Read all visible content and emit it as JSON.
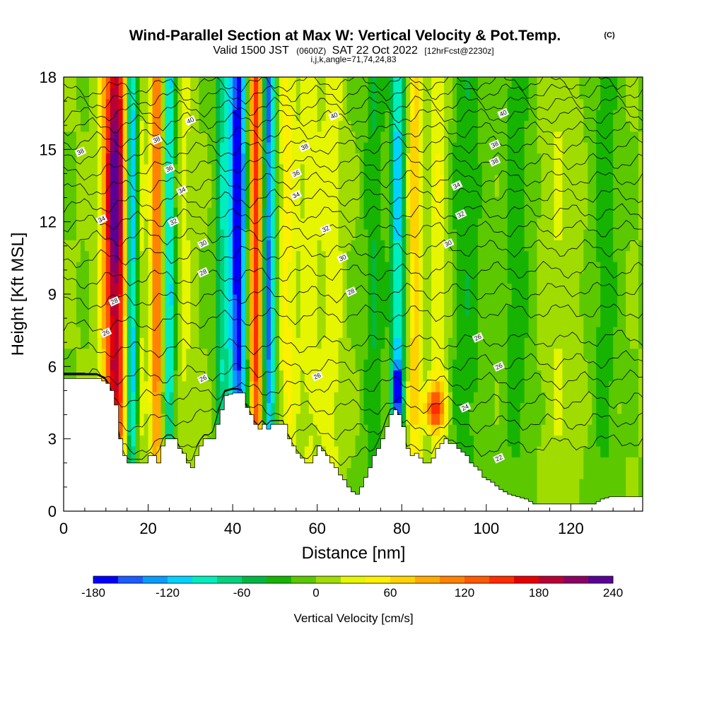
{
  "chart_data": {
    "type": "heatmap",
    "title": "Wind-Parallel Section at Max W: Vertical Velocity & Pot.Temp.",
    "title_mark": "(C)",
    "subtitle": {
      "valid": "Valid 1500 JST",
      "utc": "(0600Z)",
      "date": "SAT 22 Oct 2022",
      "forecast": "[12hrFcst@2230z]"
    },
    "indices": "i,j,k,angle=71,74,24,83",
    "xlabel": "Distance [nm]",
    "ylabel": "Height [Kft MSL]",
    "xlim": [
      0,
      137
    ],
    "ylim": [
      0,
      18
    ],
    "x_ticks": [
      0,
      20,
      40,
      60,
      80,
      100,
      120
    ],
    "y_ticks": [
      0,
      3,
      6,
      9,
      12,
      15,
      18
    ],
    "colorbar": {
      "label": "Vertical Velocity [cm/s]",
      "min": -180,
      "max": 240,
      "step": 20,
      "tick_labels": [
        -180,
        -120,
        -60,
        0,
        60,
        120,
        180,
        240
      ],
      "colors": [
        "#0000ff",
        "#1a5cff",
        "#0a9bff",
        "#00d2ff",
        "#00eebe",
        "#00d27d",
        "#00b841",
        "#16b400",
        "#5cc800",
        "#a0dc00",
        "#e6f500",
        "#fff000",
        "#ffd200",
        "#ffaa00",
        "#ff8200",
        "#ff5a00",
        "#ff2d00",
        "#e60000",
        "#b90035",
        "#8c0064",
        "#5a0096"
      ]
    },
    "terrain": [
      [
        0,
        5.5
      ],
      [
        2,
        5.5
      ],
      [
        4,
        5.5
      ],
      [
        6,
        5.5
      ],
      [
        8,
        5.5
      ],
      [
        10,
        5.3
      ],
      [
        11,
        5.0
      ],
      [
        12,
        4.4
      ],
      [
        13,
        3.0
      ],
      [
        14,
        2.3
      ],
      [
        15,
        2.0
      ],
      [
        17,
        2.0
      ],
      [
        19,
        2.0
      ],
      [
        20,
        2.3
      ],
      [
        21,
        2.3
      ],
      [
        22,
        2.0
      ],
      [
        23,
        2.7
      ],
      [
        24,
        3.0
      ],
      [
        26,
        3.0
      ],
      [
        27,
        2.6
      ],
      [
        28,
        2.4
      ],
      [
        29,
        2.0
      ],
      [
        30,
        1.8
      ],
      [
        31,
        2.3
      ],
      [
        32,
        2.7
      ],
      [
        33,
        3.0
      ],
      [
        35,
        3.0
      ],
      [
        36,
        3.6
      ],
      [
        37,
        4.2
      ],
      [
        38,
        4.8
      ],
      [
        40,
        4.9
      ],
      [
        42,
        4.9
      ],
      [
        43,
        4.3
      ],
      [
        44,
        4.0
      ],
      [
        45,
        3.6
      ],
      [
        46,
        3.4
      ],
      [
        47,
        3.6
      ],
      [
        48,
        3.4
      ],
      [
        49,
        3.6
      ],
      [
        50,
        3.6
      ],
      [
        52,
        3.6
      ],
      [
        53,
        3.0
      ],
      [
        54,
        2.7
      ],
      [
        55,
        2.4
      ],
      [
        56,
        2.2
      ],
      [
        57,
        2.0
      ],
      [
        58,
        2.0
      ],
      [
        59,
        2.3
      ],
      [
        60,
        2.7
      ],
      [
        61,
        2.5
      ],
      [
        62,
        2.3
      ],
      [
        63,
        2.0
      ],
      [
        64,
        1.8
      ],
      [
        65,
        1.5
      ],
      [
        66,
        1.3
      ],
      [
        67,
        1.0
      ],
      [
        68,
        0.8
      ],
      [
        69,
        0.7
      ],
      [
        70,
        1.0
      ],
      [
        71,
        1.4
      ],
      [
        72,
        1.8
      ],
      [
        73,
        2.3
      ],
      [
        74,
        2.6
      ],
      [
        75,
        3.0
      ],
      [
        76,
        3.5
      ],
      [
        77,
        4.0
      ],
      [
        78,
        4.2
      ],
      [
        79,
        4.0
      ],
      [
        80,
        3.5
      ],
      [
        81,
        2.6
      ],
      [
        82,
        2.3
      ],
      [
        83,
        2.4
      ],
      [
        84,
        2.2
      ],
      [
        85,
        2.0
      ],
      [
        86,
        2.0
      ],
      [
        87,
        2.2
      ],
      [
        88,
        2.6
      ],
      [
        89,
        2.8
      ],
      [
        90,
        3.0
      ],
      [
        91,
        2.8
      ],
      [
        92,
        2.8
      ],
      [
        93,
        2.6
      ],
      [
        95,
        2.3
      ],
      [
        96,
        2.0
      ],
      [
        98,
        1.7
      ],
      [
        99,
        1.4
      ],
      [
        101,
        1.2
      ],
      [
        103,
        0.9
      ],
      [
        105,
        0.7
      ],
      [
        107,
        0.6
      ],
      [
        109,
        0.5
      ],
      [
        111,
        0.3
      ],
      [
        113,
        0.3
      ],
      [
        115,
        0.3
      ],
      [
        117,
        0.3
      ],
      [
        119,
        0.3
      ],
      [
        121,
        0.3
      ],
      [
        123,
        0.3
      ],
      [
        125,
        0.3
      ],
      [
        127,
        0.5
      ],
      [
        129,
        0.6
      ],
      [
        131,
        0.6
      ],
      [
        133,
        0.6
      ],
      [
        135,
        0.6
      ],
      [
        137,
        0.6
      ]
    ],
    "vertical_velocity_bands": [
      {
        "x": 12.3,
        "w": 3.0,
        "amp": 190,
        "shift": 0.0
      },
      {
        "x": 16.0,
        "w": 1.5,
        "amp": -150,
        "shift": 0.0
      },
      {
        "x": 18.2,
        "w": 1.2,
        "amp": 30,
        "shift": 0.0
      },
      {
        "x": 22.0,
        "w": 1.4,
        "amp": 130,
        "shift": 0.0
      },
      {
        "x": 25.0,
        "w": 1.4,
        "amp": -110,
        "shift": 0.0
      },
      {
        "x": 28.5,
        "w": 2.0,
        "amp": 25,
        "shift": 0.0
      },
      {
        "x": 37.5,
        "w": 1.6,
        "amp": -70,
        "shift": 0.0
      },
      {
        "x": 41.3,
        "w": 2.2,
        "amp": -165,
        "shift": 0.0
      },
      {
        "x": 45.5,
        "w": 1.8,
        "amp": 150,
        "shift": 0.0
      },
      {
        "x": 48.5,
        "w": 1.4,
        "amp": -150,
        "shift": 0.0
      },
      {
        "x": 53.0,
        "w": 2.0,
        "amp": 45,
        "shift": 0.0
      },
      {
        "x": 58.0,
        "w": 2.5,
        "amp": 30,
        "shift": 0.0
      },
      {
        "x": 63.5,
        "w": 2.5,
        "amp": 35,
        "shift": 0.0
      },
      {
        "x": 73.5,
        "w": 2.2,
        "amp": -40,
        "shift": 0.0
      },
      {
        "x": 79.0,
        "w": 1.7,
        "amp": -110,
        "shift": 0.0
      },
      {
        "x": 83.0,
        "w": 1.6,
        "amp": 70,
        "shift": 0.0
      },
      {
        "x": 89.0,
        "w": 2.5,
        "amp": 40,
        "shift": 0.0
      },
      {
        "x": 95.0,
        "w": 4.0,
        "amp": -35,
        "shift": 0.0
      },
      {
        "x": 107.0,
        "w": 3.5,
        "amp": -30,
        "shift": 0.0
      },
      {
        "x": 117.0,
        "w": 4.0,
        "amp": 20,
        "shift": 0.0
      },
      {
        "x": 128.0,
        "w": 3.0,
        "amp": -30,
        "shift": 0.0
      }
    ],
    "vertical_velocity_cores": [
      {
        "x": 87.5,
        "y": 4.3,
        "wx": 2.5,
        "wy": 0.9,
        "amp": 130
      },
      {
        "x": 79.0,
        "y": 5.0,
        "wx": 1.2,
        "wy": 1.0,
        "amp": -120
      },
      {
        "x": 12.0,
        "y": 13.0,
        "wx": 2.0,
        "wy": 3.5,
        "amp": 60
      },
      {
        "x": 40.5,
        "y": 13.0,
        "wx": 1.5,
        "wy": 3.0,
        "amp": -40
      }
    ],
    "theta_contours": [
      {
        "label": "22",
        "y": [
          1.2,
          1.4,
          1.6,
          1.8,
          2.0,
          2.1,
          2.2,
          2.3,
          2.4,
          2.5,
          2.6,
          2.7,
          2.8,
          2.9,
          3.0
        ]
      },
      {
        "label": "",
        "y": [
          2.3,
          2.5,
          2.7,
          2.9,
          3.1,
          3.2,
          3.3,
          3.3,
          3.4,
          3.5,
          3.6,
          3.7,
          3.7,
          3.8,
          3.8
        ]
      },
      {
        "label": "24",
        "y": [
          3.3,
          3.5,
          3.7,
          3.9,
          4.1,
          4.2,
          4.3,
          4.3,
          4.4,
          4.4,
          4.5,
          4.5,
          4.6,
          4.6,
          4.6
        ]
      },
      {
        "label": "",
        "y": [
          4.4,
          4.6,
          4.7,
          4.8,
          5.0,
          5.1,
          5.2,
          5.2,
          5.3,
          5.3,
          5.4,
          5.4,
          5.4,
          5.5,
          5.5
        ]
      },
      {
        "label": "26",
        "y": [
          5.5,
          5.6,
          5.6,
          5.7,
          5.8,
          5.9,
          6.0,
          6.0,
          6.1,
          6.1,
          6.2,
          6.2,
          6.2,
          6.3,
          6.3
        ]
      },
      {
        "label": "",
        "y": [
          6.6,
          6.7,
          6.7,
          6.8,
          6.8,
          6.9,
          6.9,
          7.0,
          7.0,
          7.0,
          7.1,
          7.1,
          7.1,
          7.2,
          7.2
        ]
      },
      {
        "label": "28",
        "y": [
          7.6,
          7.7,
          7.8,
          7.9,
          8.0,
          8.1,
          8.1,
          8.2,
          8.2,
          8.2,
          8.3,
          8.3,
          8.3,
          8.3,
          8.3
        ]
      },
      {
        "label": "",
        "y": [
          8.6,
          8.7,
          8.8,
          8.8,
          8.9,
          9.0,
          9.0,
          9.0,
          9.1,
          9.1,
          9.1,
          9.1,
          9.2,
          9.2,
          9.2
        ]
      },
      {
        "label": "",
        "y": [
          9.5,
          9.6,
          9.7,
          9.7,
          9.8,
          9.8,
          9.9,
          9.9,
          9.9,
          10.0,
          10.0,
          10.0,
          10.0,
          10.0,
          10.0
        ]
      },
      {
        "label": "30",
        "y": [
          10.4,
          10.5,
          10.6,
          10.6,
          10.7,
          10.7,
          10.8,
          10.8,
          10.8,
          10.9,
          10.9,
          10.9,
          10.9,
          10.9,
          10.9
        ]
      },
      {
        "label": "",
        "y": [
          11.2,
          11.3,
          11.4,
          11.4,
          11.5,
          11.5,
          11.6,
          11.6,
          11.6,
          11.7,
          11.7,
          11.7,
          11.7,
          11.7,
          11.7
        ]
      },
      {
        "label": "32",
        "y": [
          11.9,
          12.0,
          12.1,
          12.2,
          12.2,
          12.3,
          12.3,
          12.3,
          12.4,
          12.4,
          12.4,
          12.4,
          12.4,
          12.4,
          12.4
        ]
      },
      {
        "label": "",
        "y": [
          12.6,
          12.7,
          12.8,
          12.9,
          12.9,
          13.0,
          13.0,
          13.0,
          13.1,
          13.1,
          13.1,
          13.1,
          13.1,
          13.1,
          13.1
        ]
      },
      {
        "label": "34",
        "y": [
          13.3,
          13.4,
          13.5,
          13.6,
          13.6,
          13.7,
          13.7,
          13.7,
          13.8,
          13.8,
          13.8,
          13.8,
          13.8,
          13.8,
          13.8
        ]
      },
      {
        "label": "",
        "y": [
          14.0,
          14.1,
          14.2,
          14.3,
          14.3,
          14.4,
          14.4,
          14.4,
          14.5,
          14.5,
          14.5,
          14.5,
          14.5,
          14.5,
          14.5
        ]
      },
      {
        "label": "36",
        "y": [
          14.7,
          14.8,
          14.9,
          15.0,
          15.0,
          15.1,
          15.1,
          15.1,
          15.2,
          15.2,
          15.2,
          15.2,
          15.2,
          15.2,
          15.2
        ]
      },
      {
        "label": "",
        "y": [
          15.3,
          15.4,
          15.5,
          15.6,
          15.6,
          15.7,
          15.7,
          15.7,
          15.8,
          15.8,
          15.8,
          15.8,
          15.8,
          15.8,
          15.8
        ]
      },
      {
        "label": "38",
        "y": [
          15.9,
          16.0,
          16.1,
          16.2,
          16.2,
          16.3,
          16.3,
          16.3,
          16.4,
          16.4,
          16.4,
          16.4,
          16.4,
          16.4,
          16.4
        ]
      },
      {
        "label": "",
        "y": [
          16.4,
          16.5,
          16.6,
          16.7,
          16.7,
          16.8,
          16.8,
          16.8,
          16.9,
          16.9,
          16.9,
          16.9,
          16.9,
          16.9,
          16.9
        ]
      },
      {
        "label": "40",
        "y": [
          16.9,
          17.0,
          17.1,
          17.2,
          17.2,
          17.3,
          17.3,
          17.3,
          17.4,
          17.4,
          17.4,
          17.4,
          17.4,
          17.4,
          17.4
        ]
      },
      {
        "label": "",
        "y": [
          17.4,
          17.5,
          17.6,
          17.7,
          17.7,
          17.7,
          17.8,
          17.8,
          17.8,
          17.8,
          17.8,
          17.8,
          17.8,
          17.8,
          17.8
        ]
      }
    ],
    "theta_contour_x": [
      0,
      10,
      20,
      30,
      40,
      50,
      60,
      70,
      80,
      90,
      100,
      110,
      120,
      130,
      137
    ],
    "label_positions": [
      {
        "text": "40",
        "x": 30,
        "y": 16.2
      },
      {
        "text": "40",
        "x": 64,
        "y": 16.4
      },
      {
        "text": "40",
        "x": 104,
        "y": 16.5
      },
      {
        "text": "38",
        "x": 4,
        "y": 14.9
      },
      {
        "text": "38",
        "x": 22,
        "y": 15.4
      },
      {
        "text": "38",
        "x": 57,
        "y": 15.1
      },
      {
        "text": "38",
        "x": 102,
        "y": 15.2
      },
      {
        "text": "38",
        "x": 102,
        "y": 14.5
      },
      {
        "text": "36",
        "x": 25,
        "y": 14.2
      },
      {
        "text": "36",
        "x": 55,
        "y": 14.0
      },
      {
        "text": "34",
        "x": 9,
        "y": 12.1
      },
      {
        "text": "34",
        "x": 28,
        "y": 13.3
      },
      {
        "text": "34",
        "x": 55,
        "y": 13.1
      },
      {
        "text": "34",
        "x": 93,
        "y": 13.5
      },
      {
        "text": "32",
        "x": 26,
        "y": 12.0
      },
      {
        "text": "32",
        "x": 62,
        "y": 11.7
      },
      {
        "text": "32",
        "x": 94,
        "y": 12.3
      },
      {
        "text": "30",
        "x": 33,
        "y": 11.1
      },
      {
        "text": "30",
        "x": 66,
        "y": 10.5
      },
      {
        "text": "30",
        "x": 91,
        "y": 11.1
      },
      {
        "text": "28",
        "x": 33,
        "y": 9.9
      },
      {
        "text": "28",
        "x": 12,
        "y": 8.7
      },
      {
        "text": "28",
        "x": 68,
        "y": 9.1
      },
      {
        "text": "26",
        "x": 10,
        "y": 7.4
      },
      {
        "text": "26",
        "x": 33,
        "y": 5.5
      },
      {
        "text": "26",
        "x": 60,
        "y": 5.6
      },
      {
        "text": "26",
        "x": 98,
        "y": 7.2
      },
      {
        "text": "26",
        "x": 103,
        "y": 6.0
      },
      {
        "text": "24",
        "x": 95,
        "y": 4.3
      },
      {
        "text": "22",
        "x": 103,
        "y": 2.2
      }
    ]
  }
}
